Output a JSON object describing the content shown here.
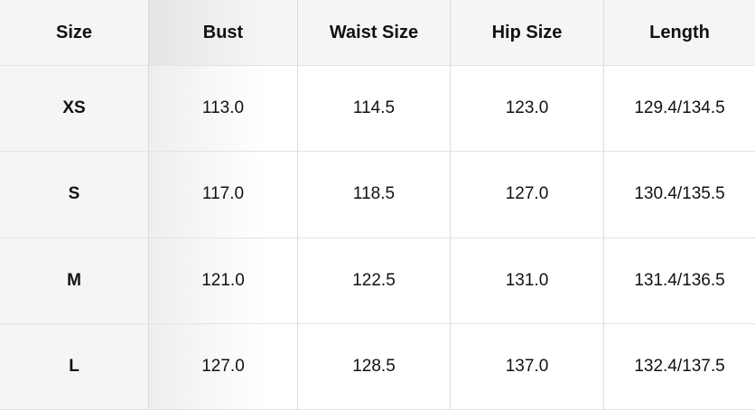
{
  "colors": {
    "header_bg": "#f5f5f6",
    "sticky_col_bg": "#f5f5f6",
    "cell_bg": "#ffffff",
    "border_v": "#d9d9d9",
    "border_h": "#e3e3e3",
    "text": "#111111"
  },
  "table": {
    "columns": [
      "Size",
      "Bust",
      "Waist Size",
      "Hip Size",
      "Length"
    ],
    "rows": [
      {
        "size": "XS",
        "bust": "113.0",
        "waist": "114.5",
        "hip": "123.0",
        "length": "129.4/134.5"
      },
      {
        "size": "S",
        "bust": "117.0",
        "waist": "118.5",
        "hip": "127.0",
        "length": "130.4/135.5"
      },
      {
        "size": "M",
        "bust": "121.0",
        "waist": "122.5",
        "hip": "131.0",
        "length": "131.4/136.5"
      },
      {
        "size": "L",
        "bust": "127.0",
        "waist": "128.5",
        "hip": "137.0",
        "length": "132.4/137.5"
      }
    ]
  }
}
